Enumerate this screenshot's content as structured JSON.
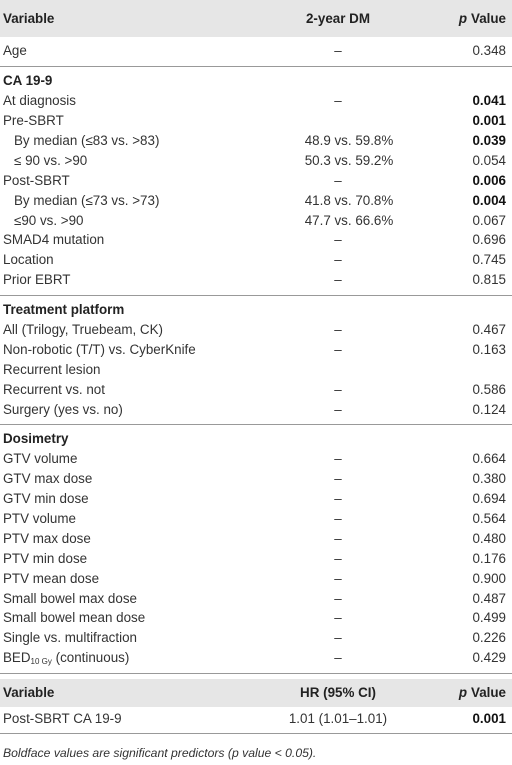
{
  "table": {
    "header": [
      "Variable",
      "2-year DM",
      {
        "symbol": "p",
        "word": "Value"
      }
    ],
    "sections": [
      {
        "rows": [
          {
            "variable": "Age",
            "dm": "–",
            "p": "0.348"
          }
        ]
      },
      {
        "title": "CA 19-9",
        "rows": [
          {
            "variable": "At diagnosis",
            "dm": "–",
            "p": "0.041",
            "bold": true
          },
          {
            "variable": "Pre-SBRT",
            "dm": "",
            "p": "0.001",
            "bold": true
          },
          {
            "variable": "By median (≤83 vs. >83)",
            "dm": "48.9 vs. 59.8%",
            "p": "0.039",
            "bold": true,
            "indent": true
          },
          {
            "variable": "≤ 90 vs. >90",
            "dm": "50.3 vs. 59.2%",
            "p": "0.054",
            "indent": true
          },
          {
            "variable": "Post-SBRT",
            "dm": "–",
            "p": "0.006",
            "bold": true
          },
          {
            "variable": "By median (≤73 vs. >73)",
            "dm": "41.8 vs. 70.8%",
            "p": "0.004",
            "bold": true,
            "indent": true
          },
          {
            "variable": "≤90 vs. >90",
            "dm": "47.7 vs. 66.6%",
            "p": "0.067",
            "indent": true
          },
          {
            "variable": "SMAD4 mutation",
            "dm": "–",
            "p": "0.696"
          },
          {
            "variable": "Location",
            "dm": "–",
            "p": "0.745"
          },
          {
            "variable": "Prior EBRT",
            "dm": "–",
            "p": "0.815"
          }
        ]
      },
      {
        "title": "Treatment platform",
        "rows": [
          {
            "variable": "All (Trilogy, Truebeam, CK)",
            "dm": "–",
            "p": "0.467"
          },
          {
            "variable": "Non-robotic (T/T) vs. CyberKnife",
            "dm": "–",
            "p": "0.163"
          },
          {
            "variable": "Recurrent lesion"
          },
          {
            "variable": "Recurrent vs. not",
            "dm": "–",
            "p": "0.586"
          },
          {
            "variable": "Surgery (yes vs. no)",
            "dm": "–",
            "p": "0.124"
          }
        ]
      },
      {
        "title": "Dosimetry",
        "rows": [
          {
            "variable": "GTV volume",
            "dm": "–",
            "p": "0.664"
          },
          {
            "variable": "GTV max dose",
            "dm": "–",
            "p": "0.380"
          },
          {
            "variable": "GTV min dose",
            "dm": "–",
            "p": "0.694"
          },
          {
            "variable": "PTV volume",
            "dm": "–",
            "p": "0.564"
          },
          {
            "variable": "PTV max dose",
            "dm": "–",
            "p": "0.480"
          },
          {
            "variable": "PTV min dose",
            "dm": "–",
            "p": "0.176"
          },
          {
            "variable": "PTV mean dose",
            "dm": "–",
            "p": "0.900"
          },
          {
            "variable": "Small bowel max dose",
            "dm": "–",
            "p": "0.487"
          },
          {
            "variable": "Small bowel mean dose",
            "dm": "–",
            "p": "0.499"
          },
          {
            "variable": "Single vs. multifraction",
            "dm": "–",
            "p": "0.226"
          },
          {
            "variable": "BED",
            "subscript": "10 Gy",
            "suffix": " (continuous)",
            "dm": "–",
            "p": "0.429"
          }
        ]
      }
    ]
  },
  "hr_table": {
    "header": [
      "Variable",
      "HR (95% CI)",
      {
        "symbol": "p",
        "word": "Value"
      }
    ],
    "rows": [
      {
        "variable": "Post-SBRT CA 19-9",
        "dm": "1.01 (1.01–1.01)",
        "p": "0.001",
        "bold": true
      }
    ]
  },
  "footnote": "Boldface values are significant predictors (p value < 0.05)."
}
